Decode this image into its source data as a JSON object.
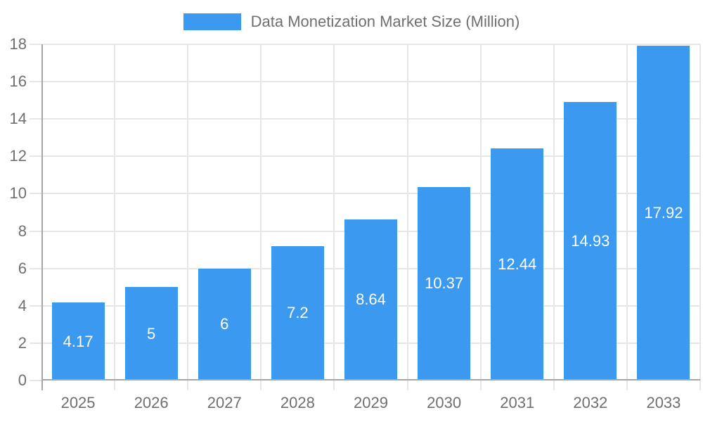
{
  "legend": {
    "label": "Data Monetization Market Size (Million)",
    "swatch_color": "#3b99f0"
  },
  "chart_data": {
    "type": "bar",
    "title": "Data Monetization Market Size (Million)",
    "categories": [
      "2025",
      "2026",
      "2027",
      "2028",
      "2029",
      "2030",
      "2031",
      "2032",
      "2033"
    ],
    "values": [
      4.17,
      5,
      6,
      7.2,
      8.64,
      10.37,
      12.44,
      14.93,
      17.92
    ],
    "value_labels": [
      "4.17",
      "5",
      "6",
      "7.2",
      "8.64",
      "10.37",
      "12.44",
      "14.93",
      "17.92"
    ],
    "xlabel": "",
    "ylabel": "",
    "ylim": [
      0,
      18
    ],
    "ytick_step": 2,
    "yticks": [
      0,
      2,
      4,
      6,
      8,
      10,
      12,
      14,
      16,
      18
    ],
    "grid": true,
    "legend_position": "top",
    "bar_width_fraction": 0.72,
    "colors": {
      "bar": "#3b99f0",
      "bar_label": "#ffffff",
      "axis": "#a6a6a6",
      "grid": "#e6e6e6",
      "text": "#6f6f6f",
      "background": "#ffffff"
    }
  }
}
